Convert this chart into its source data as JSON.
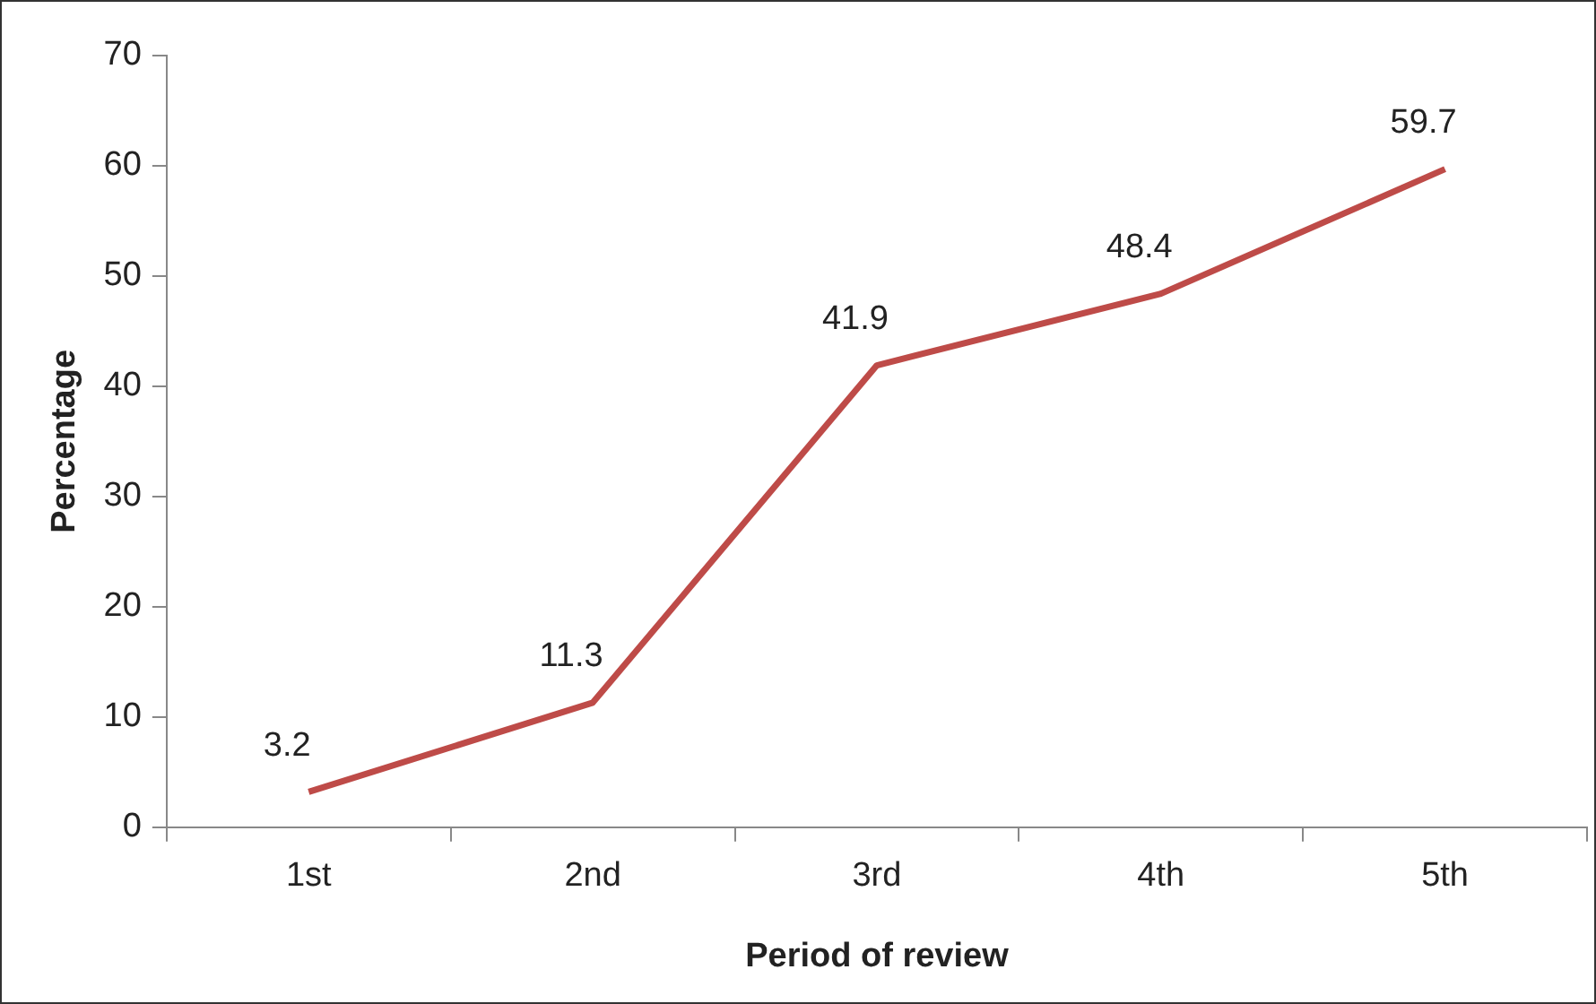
{
  "chart_data": {
    "type": "line",
    "xlabel": "Period of review",
    "ylabel": "Percentage",
    "categories": [
      "1st",
      "2nd",
      "3rd",
      "4th",
      "5th"
    ],
    "series": [
      {
        "color": "#be4b48",
        "values": [
          3.2,
          11.3,
          41.9,
          48.4,
          59.7
        ]
      }
    ],
    "ylim": [
      0,
      70
    ],
    "yticks": [
      0,
      10,
      20,
      30,
      40,
      50,
      60,
      70
    ],
    "grid": false,
    "legend": false,
    "marker": "none",
    "line_style": "solid",
    "data_labels": true
  }
}
